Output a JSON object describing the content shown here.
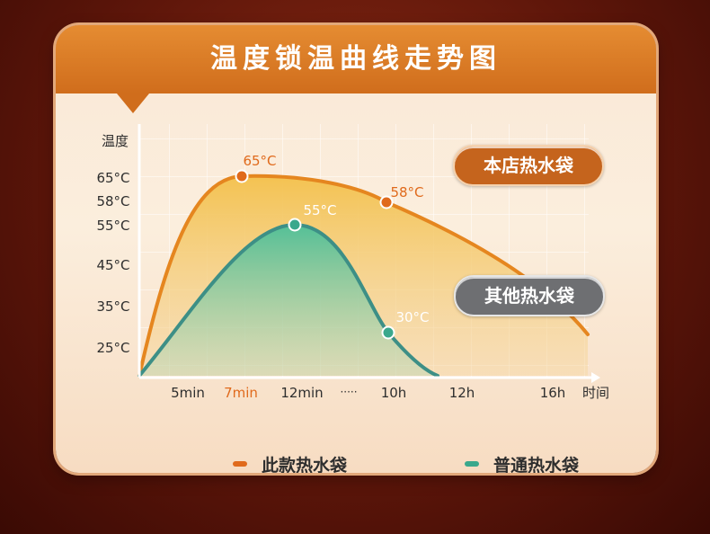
{
  "title": "温度锁温曲线走势图",
  "badges": {
    "ours": "本店热水袋",
    "other": "其他热水袋"
  },
  "legend": {
    "ours": "此款热水袋",
    "other": "普通热水袋"
  },
  "colors": {
    "ours": "#e06a1c",
    "other": "#3aa88c",
    "header": "#d8782a"
  },
  "chart_data": {
    "type": "area",
    "ylabel": "温度",
    "xlabel": "时间",
    "y_ticks": [
      "65°C",
      "58°C",
      "55°C",
      "45°C",
      "35°C",
      "25°C"
    ],
    "y_tick_values": [
      65,
      58,
      55,
      45,
      35,
      25
    ],
    "x_ticks": [
      "5min",
      "7min",
      "12min",
      "·····",
      "10h",
      "12h",
      "16h"
    ],
    "highlighted_x_tick": "7min",
    "series": [
      {
        "name": "此款热水袋",
        "color": "#e06a1c",
        "points": [
          [
            "start",
            15
          ],
          [
            "7min",
            65
          ],
          [
            "10h",
            58
          ],
          [
            "end",
            30
          ]
        ],
        "labels": [
          {
            "x": "7min",
            "text": "65°C"
          },
          {
            "x": "10h",
            "text": "58°C"
          }
        ]
      },
      {
        "name": "普通热水袋",
        "color": "#3aa88c",
        "points": [
          [
            "start",
            15
          ],
          [
            "12min",
            55
          ],
          [
            "10h",
            30
          ],
          [
            "12h",
            15
          ]
        ],
        "labels": [
          {
            "x": "12min",
            "text": "55°C"
          },
          {
            "x": "10h",
            "text": "30°C"
          }
        ]
      }
    ]
  }
}
